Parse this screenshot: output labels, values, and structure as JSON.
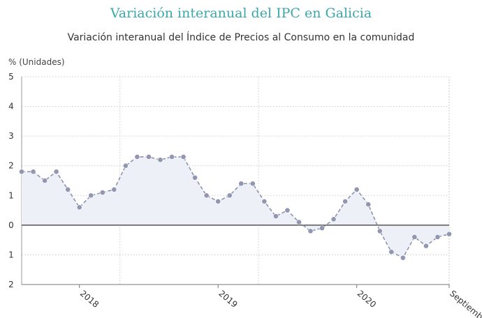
{
  "title": "Variación interanual del IPC en Galicia",
  "subtitle": "Variación interanual del Índice de Precios al Consumo en la comunidad",
  "y_unit": "% (Unidades)",
  "colors": {
    "title": "#3aa8a8",
    "line": "#8e94ac",
    "point": "#9196b1",
    "area": "#eef0f8",
    "zero": "#333333",
    "grid": "#cccccc"
  },
  "chart_data": {
    "type": "line",
    "title": "Variación interanual del IPC en Galicia",
    "subtitle": "Variación interanual del Índice de Precios al Consumo en la comunidad",
    "ylabel": "% (Unidades)",
    "xlabel": "",
    "ylim": [
      -2,
      5
    ],
    "y_ticks": [
      -2,
      -1,
      0,
      1,
      2,
      3,
      4,
      5
    ],
    "y_tick_labels": [
      "2",
      "1",
      "0",
      "1",
      "2",
      "3",
      "4",
      "5"
    ],
    "x_tick_labels": [
      {
        "label": "2018",
        "index": 5
      },
      {
        "label": "2019",
        "index": 17
      },
      {
        "label": "2020",
        "index": 29
      },
      {
        "label": "Septiembre",
        "index": 37
      }
    ],
    "x_range_index": [
      0,
      37
    ],
    "grid": true,
    "series": [
      {
        "values": [
          1.8,
          1.8,
          1.5,
          1.8,
          1.2,
          0.6,
          1.0,
          1.1,
          1.2,
          2.0,
          2.3,
          2.3,
          2.2,
          2.3,
          2.3,
          1.6,
          1.0,
          0.8,
          1.0,
          1.4,
          1.4,
          0.8,
          0.3,
          0.5,
          0.1,
          -0.2,
          -0.1,
          0.2,
          0.8,
          1.2,
          0.7,
          -0.2,
          -0.9,
          -1.1,
          -0.4,
          -0.7,
          -0.4,
          -0.3
        ]
      }
    ]
  }
}
